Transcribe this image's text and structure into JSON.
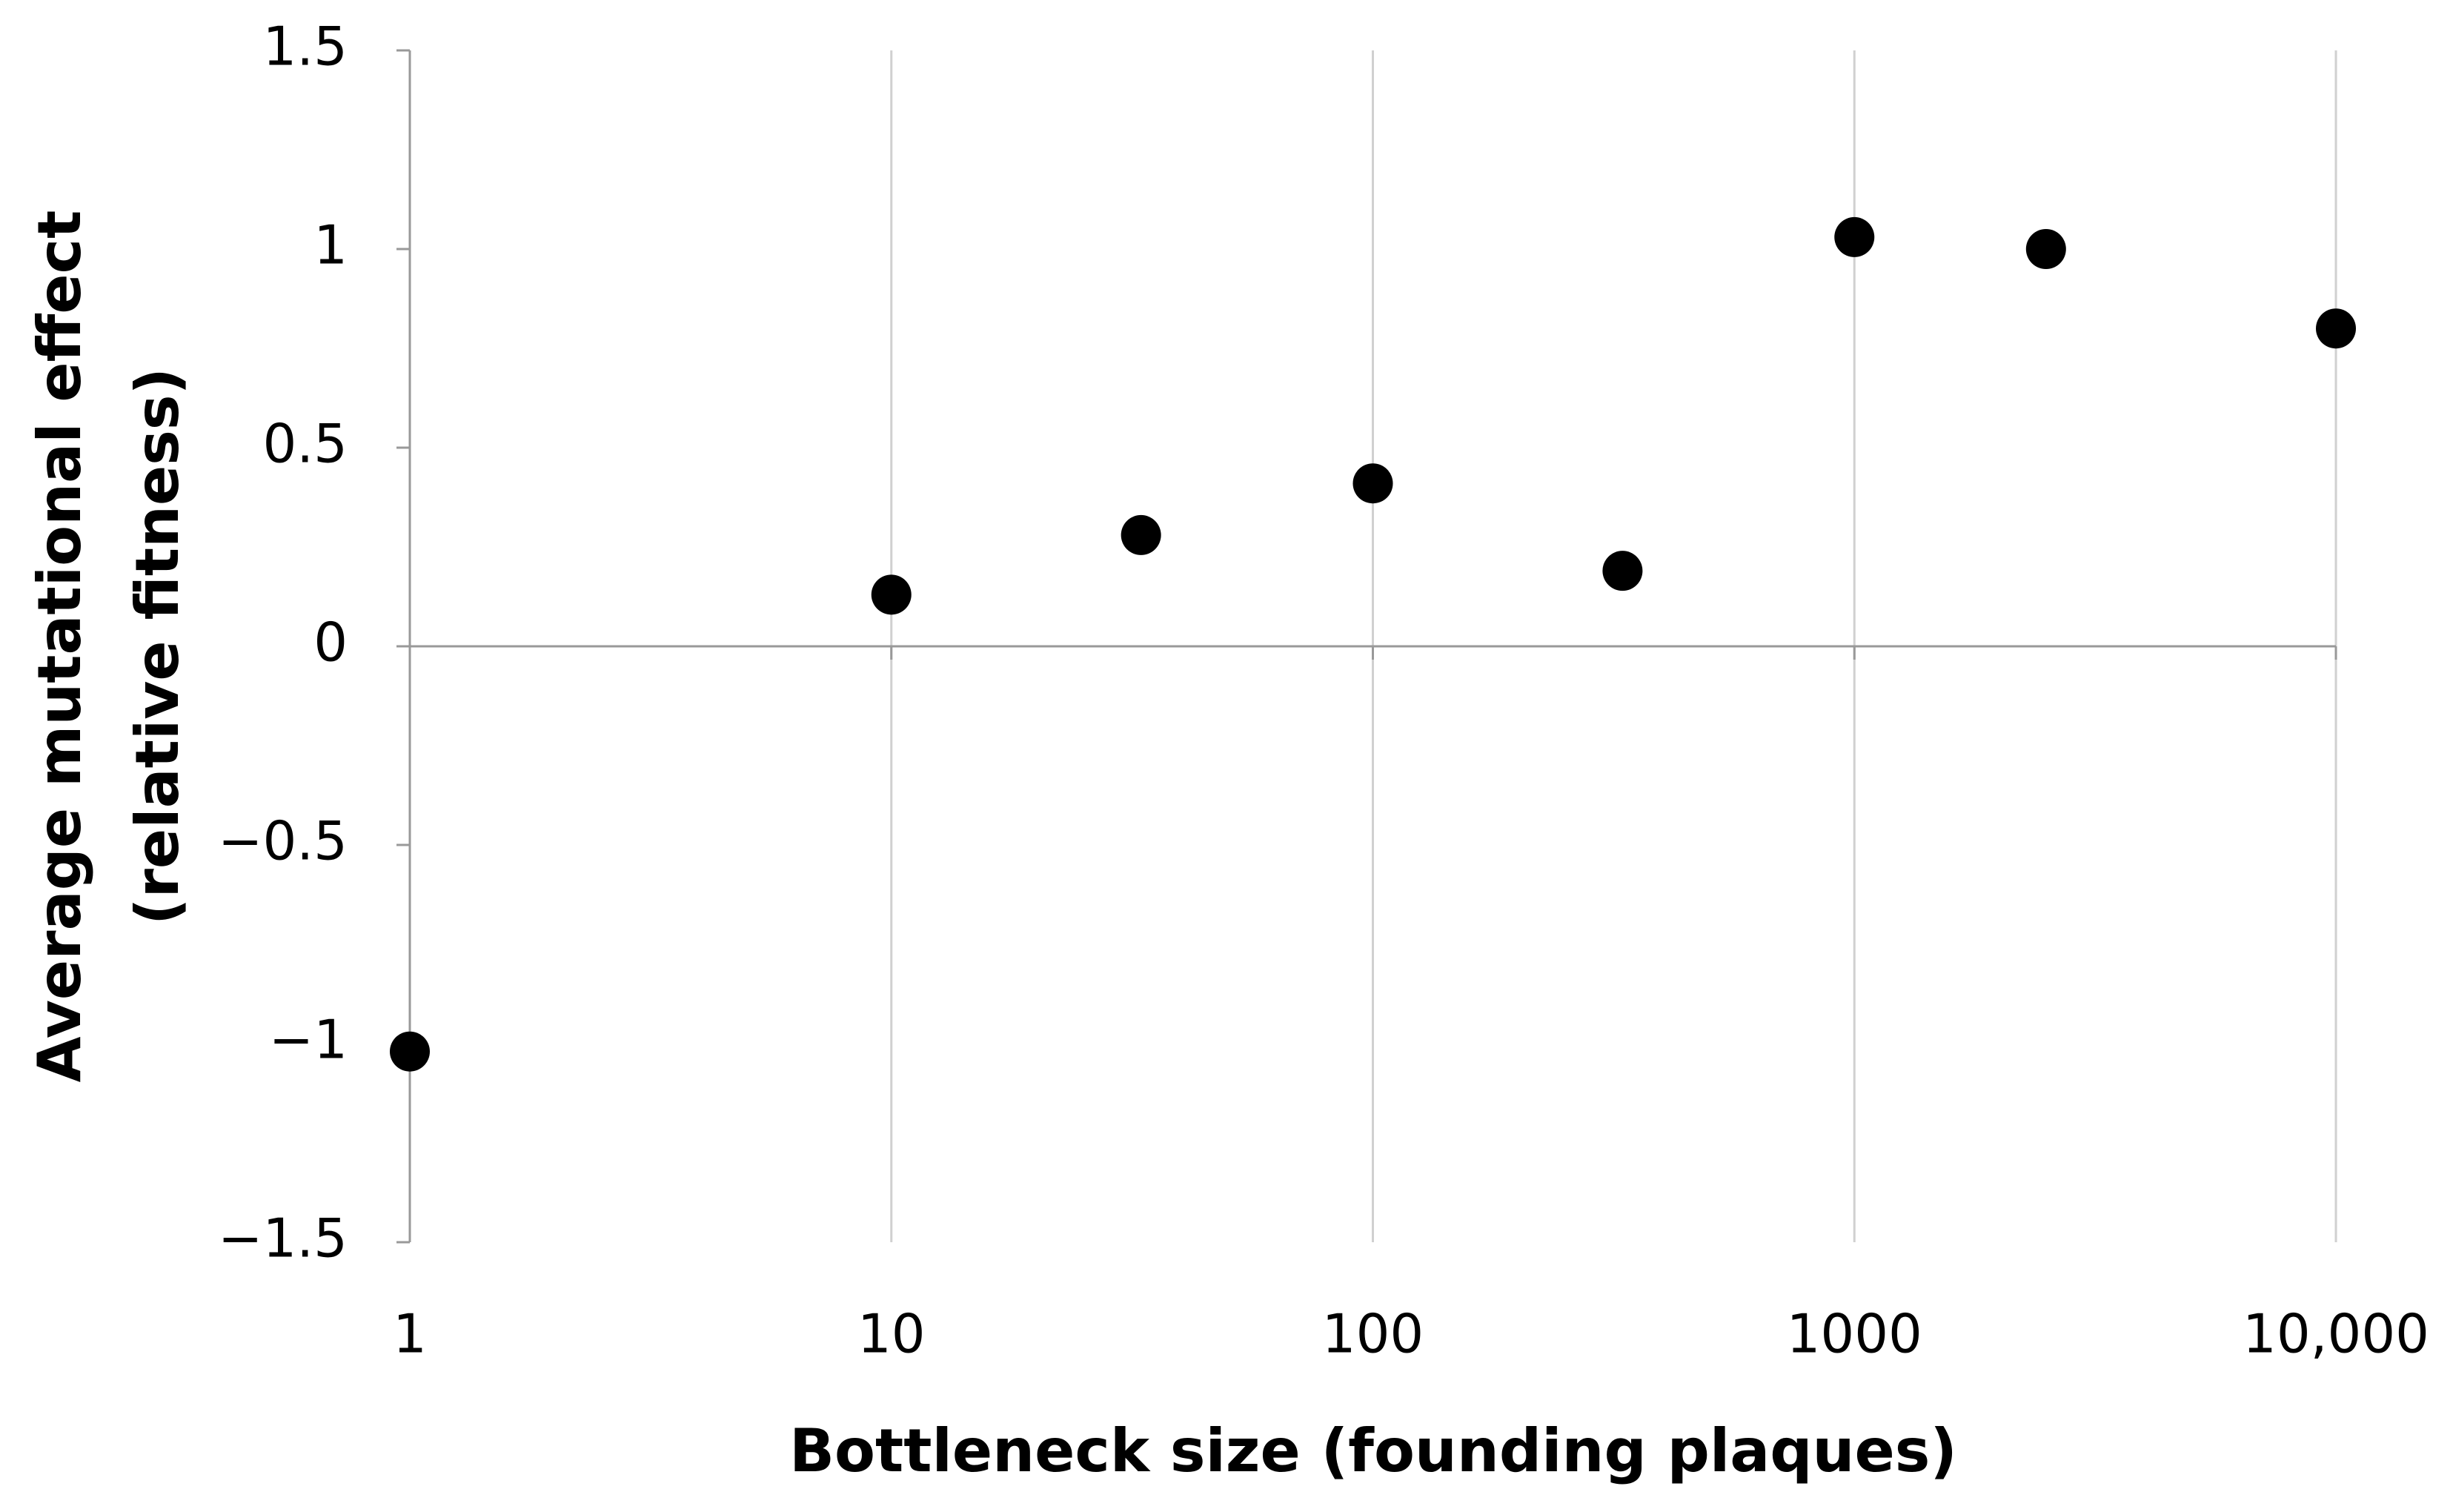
{
  "chart_data": {
    "type": "scatter",
    "xlabel": "Bottleneck size (founding plaques)",
    "ylabel": [
      "Average mutational effect",
      "(relative fitness)"
    ],
    "x": [
      1,
      10,
      33,
      100,
      330,
      1000,
      2500,
      10000
    ],
    "values": [
      -1.02,
      0.13,
      0.28,
      0.41,
      0.19,
      1.03,
      1.0,
      0.8
    ],
    "color": "#000000",
    "xscale": "log",
    "xlim": [
      1,
      10000
    ],
    "xticks": [
      1,
      10,
      100,
      1000,
      {
        "value": 10000,
        "label": "10,000"
      }
    ],
    "ylim": [
      -1.5,
      1.5
    ],
    "yticks": [
      {
        "value": -1.5,
        "label": "−1.5"
      },
      {
        "value": -1,
        "label": "−1"
      },
      {
        "value": -0.5,
        "label": "−0.5"
      },
      0,
      0.5,
      1,
      1.5
    ],
    "grid": true
  }
}
